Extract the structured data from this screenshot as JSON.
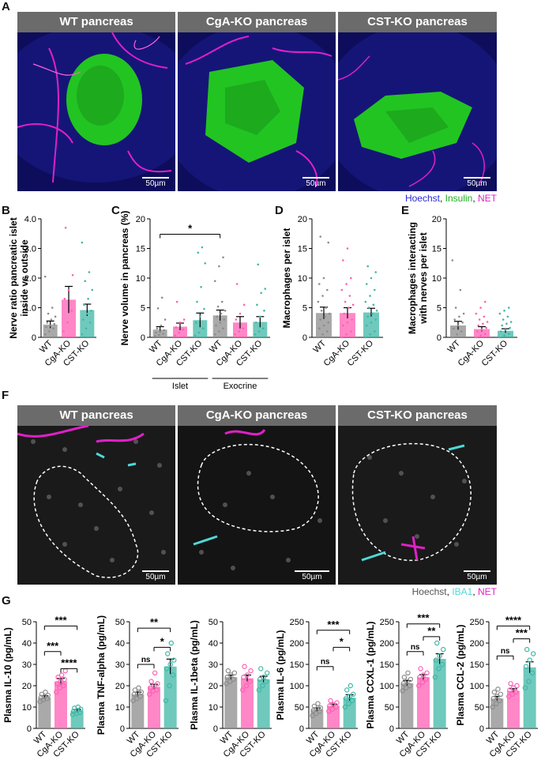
{
  "panel_labels": {
    "A": "A",
    "B": "B",
    "C": "C",
    "D": "D",
    "E": "E",
    "F": "F",
    "G": "G"
  },
  "panelA": {
    "titles": [
      "WT pancreas",
      "CgA-KO pancreas",
      "CST-KO pancreas"
    ],
    "scalebar": "50µm",
    "legend": {
      "c1": "Hoechst",
      "sep1": ", ",
      "c2": "Insulin",
      "sep2": ", ",
      "c3": "NET"
    },
    "colors": {
      "c1": "#2a2ad8",
      "c2": "#1fae1f",
      "c3": "#e020c8"
    }
  },
  "panelF": {
    "titles": [
      "WT pancreas",
      "CgA-KO pancreas",
      "CST-KO pancreas"
    ],
    "scalebar": "50µm",
    "legend": {
      "c1": "Hoechst",
      "sep1": ", ",
      "c2": "IBA1",
      "sep2": ", ",
      "c3": "NET"
    },
    "colors": {
      "c1": "#555555",
      "c2": "#4fd8d8",
      "c3": "#e020c8"
    }
  },
  "colors": {
    "WT": "#8c8c8c",
    "CgA-KO": "#ff5fb4",
    "CST-KO": "#3fb7a6"
  },
  "chart_data": [
    {
      "id": "B",
      "type": "bar",
      "ylabel": "Nerve ratio pancreatic islet\ninside vs outside",
      "ylim": [
        0,
        4
      ],
      "yticks": [
        "0",
        "1.0",
        "2.0",
        "3.0",
        "4.0"
      ],
      "tickvals": [
        0,
        1,
        2,
        3,
        4
      ],
      "categories": [
        "WT",
        "CgA-KO",
        "CST-KO"
      ],
      "values": [
        0.43,
        1.27,
        0.92
      ],
      "err": [
        0.12,
        0.45,
        0.2
      ],
      "points": [
        [
          0.1,
          0.2,
          0.3,
          0.35,
          0.4,
          0.45,
          0.5,
          0.6,
          0.7,
          0.8,
          1.0,
          2.05
        ],
        [
          0.2,
          0.5,
          0.9,
          1.3,
          1.6,
          2.1,
          3.7
        ],
        [
          0.1,
          0.3,
          0.5,
          0.6,
          0.8,
          0.9,
          1.1,
          1.3,
          1.6,
          1.9,
          2.2,
          3.2
        ]
      ]
    },
    {
      "id": "C",
      "type": "bar",
      "ylabel": "Nerve volume in pancreas (%)",
      "ylim": [
        0,
        20
      ],
      "yticks": [
        "0",
        "5",
        "10",
        "15",
        "20"
      ],
      "tickvals": [
        0,
        5,
        10,
        15,
        20
      ],
      "categories": [
        "WT",
        "CgA-KO",
        "CST-KO",
        "WT",
        "CgA-KO",
        "CST-KO"
      ],
      "groups": [
        "Islet",
        "Exocrine"
      ],
      "values": [
        1.3,
        1.8,
        2.9,
        3.7,
        2.5,
        2.6
      ],
      "err": [
        0.5,
        0.6,
        1.2,
        0.9,
        1.0,
        0.9
      ],
      "points": [
        [
          0.2,
          0.4,
          0.6,
          0.8,
          1.0,
          1.2,
          1.5,
          2.0,
          3.0,
          4.9,
          6.7
        ],
        [
          0.3,
          0.8,
          1.3,
          1.7,
          2.5,
          3.0,
          6.0
        ],
        [
          0.3,
          0.8,
          1.5,
          2.5,
          3.5,
          4.8,
          6.0,
          8.5,
          12.5,
          14.3,
          15.2
        ],
        [
          0.5,
          1.0,
          1.5,
          2.0,
          2.5,
          3.0,
          3.5,
          4.0,
          4.5,
          5.2,
          6.0,
          9.5,
          12.0,
          13.5
        ],
        [
          0.5,
          1.0,
          1.5,
          3.0,
          4.0,
          5.5,
          9.0
        ],
        [
          0.5,
          1.0,
          1.5,
          2.5,
          3.5,
          4.5,
          5.5,
          7.5,
          8.2,
          12.3
        ]
      ],
      "significance": [
        {
          "from": 0,
          "to": 3,
          "label": "*"
        }
      ]
    },
    {
      "id": "D",
      "type": "bar",
      "ylabel": "Macrophages per islet",
      "ylim": [
        0,
        20
      ],
      "yticks": [
        "0",
        "5",
        "10",
        "15",
        "20"
      ],
      "tickvals": [
        0,
        5,
        10,
        15,
        20
      ],
      "categories": [
        "WT",
        "CgA-KO",
        "CST-KO"
      ],
      "values": [
        4.1,
        4.1,
        4.2
      ],
      "err": [
        1.0,
        0.9,
        0.7
      ],
      "points": [
        [
          0,
          0.5,
          1,
          1.5,
          2,
          2.5,
          3,
          3.5,
          4,
          4.5,
          5,
          6,
          7,
          8,
          9,
          10,
          16,
          17
        ],
        [
          0,
          0.5,
          1,
          2,
          2.5,
          3,
          4,
          5,
          5.5,
          6,
          7,
          8,
          9,
          10,
          13,
          15
        ],
        [
          0,
          0.5,
          1,
          2,
          2.5,
          3,
          3.5,
          4,
          4.5,
          5,
          5.5,
          6,
          7,
          8,
          9,
          10,
          11,
          12
        ]
      ]
    },
    {
      "id": "E",
      "type": "bar",
      "ylabel": "Macrophages interacting\nwith nerves per islet",
      "ylim": [
        0,
        20
      ],
      "yticks": [
        "0",
        "5",
        "10",
        "15",
        "20"
      ],
      "tickvals": [
        0,
        5,
        10,
        15,
        20
      ],
      "categories": [
        "WT",
        "CgA-KO",
        "CST-KO"
      ],
      "values": [
        2.0,
        1.4,
        1.1
      ],
      "err": [
        0.7,
        0.4,
        0.35
      ],
      "points": [
        [
          0,
          0.5,
          1,
          1.5,
          2,
          2.5,
          3,
          3.5,
          4,
          5,
          8,
          13
        ],
        [
          0,
          0.3,
          0.6,
          1,
          1.3,
          1.6,
          2,
          2.3,
          2.6,
          3,
          3.5,
          4,
          5,
          6
        ],
        [
          0,
          0.3,
          0.6,
          1,
          1.3,
          1.6,
          2,
          2.3,
          2.6,
          3,
          3.5,
          4,
          4.5,
          5
        ]
      ]
    },
    {
      "id": "G1",
      "type": "bar",
      "ylabel": "Plasma IL-10 (pg/mL)",
      "ylim": [
        0,
        50
      ],
      "yticks": [
        "0",
        "10",
        "20",
        "30",
        "40",
        "50"
      ],
      "tickvals": [
        0,
        10,
        20,
        30,
        40,
        50
      ],
      "categories": [
        "WT",
        "CgA-KO",
        "CST-KO"
      ],
      "values": [
        14.5,
        22.0,
        8.3
      ],
      "err": [
        0.8,
        1.4,
        0.6
      ],
      "points": [
        [
          12.5,
          13.5,
          14,
          14.5,
          15,
          15.5,
          16,
          17
        ],
        [
          17,
          19,
          20,
          21,
          22,
          23,
          24,
          25,
          27
        ],
        [
          6.5,
          7,
          7.5,
          8,
          8.5,
          9,
          9.5,
          10
        ]
      ],
      "significance": [
        {
          "from": 0,
          "to": 2,
          "label": "***",
          "y": 48
        },
        {
          "from": 0,
          "to": 1,
          "label": "***",
          "y": 36
        },
        {
          "from": 1,
          "to": 2,
          "label": "****",
          "y": 28
        }
      ]
    },
    {
      "id": "G2",
      "type": "bar",
      "ylabel": "Plasma TNF-alpha (pg/mL)",
      "ylim": [
        0,
        50
      ],
      "yticks": [
        "0",
        "10",
        "20",
        "30",
        "40",
        "50"
      ],
      "tickvals": [
        0,
        10,
        20,
        30,
        40,
        50
      ],
      "categories": [
        "WT",
        "CgA-KO",
        "CST-KO"
      ],
      "values": [
        16.0,
        19.5,
        29.0
      ],
      "err": [
        1.0,
        1.2,
        3.5
      ],
      "points": [
        [
          13,
          14,
          15,
          16,
          16.5,
          17,
          18,
          19
        ],
        [
          16,
          17.5,
          18,
          19,
          20,
          21,
          22,
          26
        ],
        [
          13,
          20,
          25,
          28,
          30,
          32,
          35,
          40
        ]
      ],
      "significance": [
        {
          "from": 0,
          "to": 2,
          "label": "**",
          "y": 47
        },
        {
          "from": 1,
          "to": 2,
          "label": "*",
          "y": 38
        },
        {
          "from": 0,
          "to": 1,
          "label": "ns",
          "y": 30
        }
      ]
    },
    {
      "id": "G3",
      "type": "bar",
      "ylabel": "Plasma IL-1beta (pg/mL)",
      "ylim": [
        0,
        50
      ],
      "yticks": [
        "0",
        "10",
        "20",
        "30",
        "40",
        "50"
      ],
      "tickvals": [
        0,
        10,
        20,
        30,
        40,
        50
      ],
      "categories": [
        "WT",
        "CgA-KO",
        "CST-KO"
      ],
      "values": [
        24.0,
        23.5,
        23.0
      ],
      "err": [
        1.0,
        1.5,
        1.4
      ],
      "points": [
        [
          21,
          22,
          23,
          24,
          25,
          26,
          27
        ],
        [
          18,
          20,
          22,
          24,
          25,
          27,
          29
        ],
        [
          18,
          20,
          22,
          23,
          24,
          26,
          28
        ]
      ]
    },
    {
      "id": "G4",
      "type": "bar",
      "ylabel": "Plasma IL-6 (pg/mL)",
      "ylim": [
        0,
        250
      ],
      "yticks": [
        "0",
        "50",
        "100",
        "150",
        "200",
        "250"
      ],
      "tickvals": [
        0,
        50,
        100,
        150,
        200,
        250
      ],
      "categories": [
        "WT",
        "CgA-KO",
        "CST-KO"
      ],
      "values": [
        44,
        53,
        72
      ],
      "err": [
        4,
        4,
        7
      ],
      "points": [
        [
          30,
          35,
          40,
          42,
          45,
          48,
          52,
          58
        ],
        [
          40,
          45,
          50,
          53,
          56,
          60,
          65
        ],
        [
          50,
          58,
          65,
          70,
          75,
          80,
          90,
          100
        ]
      ],
      "significance": [
        {
          "from": 0,
          "to": 2,
          "label": "***",
          "y": 230
        },
        {
          "from": 1,
          "to": 2,
          "label": "*",
          "y": 190
        },
        {
          "from": 0,
          "to": 1,
          "label": "ns",
          "y": 145
        }
      ]
    },
    {
      "id": "G5",
      "type": "bar",
      "ylabel": "Plasma CCXL-1 (pg/mL)",
      "ylim": [
        0,
        250
      ],
      "yticks": [
        "0",
        "50",
        "100",
        "150",
        "200",
        "250"
      ],
      "tickvals": [
        0,
        50,
        100,
        150,
        200,
        250
      ],
      "categories": [
        "WT",
        "CgA-KO",
        "CST-KO"
      ],
      "values": [
        106,
        120,
        163
      ],
      "err": [
        6,
        6,
        12
      ],
      "points": [
        [
          88,
          95,
          100,
          105,
          110,
          115,
          120,
          130
        ],
        [
          100,
          108,
          115,
          120,
          125,
          130,
          140
        ],
        [
          120,
          140,
          150,
          160,
          170,
          185,
          200
        ]
      ],
      "significance": [
        {
          "from": 0,
          "to": 2,
          "label": "***",
          "y": 245
        },
        {
          "from": 1,
          "to": 2,
          "label": "**",
          "y": 215
        },
        {
          "from": 0,
          "to": 1,
          "label": "ns",
          "y": 180
        }
      ]
    },
    {
      "id": "G6",
      "type": "bar",
      "ylabel": "Plasma CCL-2 (pg/mL)",
      "ylim": [
        0,
        250
      ],
      "yticks": [
        "0",
        "50",
        "100",
        "150",
        "200",
        "250"
      ],
      "tickvals": [
        0,
        50,
        100,
        150,
        200,
        250
      ],
      "categories": [
        "WT",
        "CgA-KO",
        "CST-KO"
      ],
      "values": [
        70,
        88,
        143
      ],
      "err": [
        5,
        5,
        13
      ],
      "points": [
        [
          50,
          58,
          65,
          70,
          75,
          80,
          85,
          92
        ],
        [
          75,
          80,
          85,
          90,
          95,
          100,
          105
        ],
        [
          95,
          110,
          130,
          145,
          160,
          175,
          185
        ]
      ],
      "significance": [
        {
          "from": 0,
          "to": 2,
          "label": "****",
          "y": 240
        },
        {
          "from": 1,
          "to": 2,
          "label": "***",
          "y": 210
        },
        {
          "from": 0,
          "to": 1,
          "label": "ns",
          "y": 170
        }
      ]
    }
  ]
}
